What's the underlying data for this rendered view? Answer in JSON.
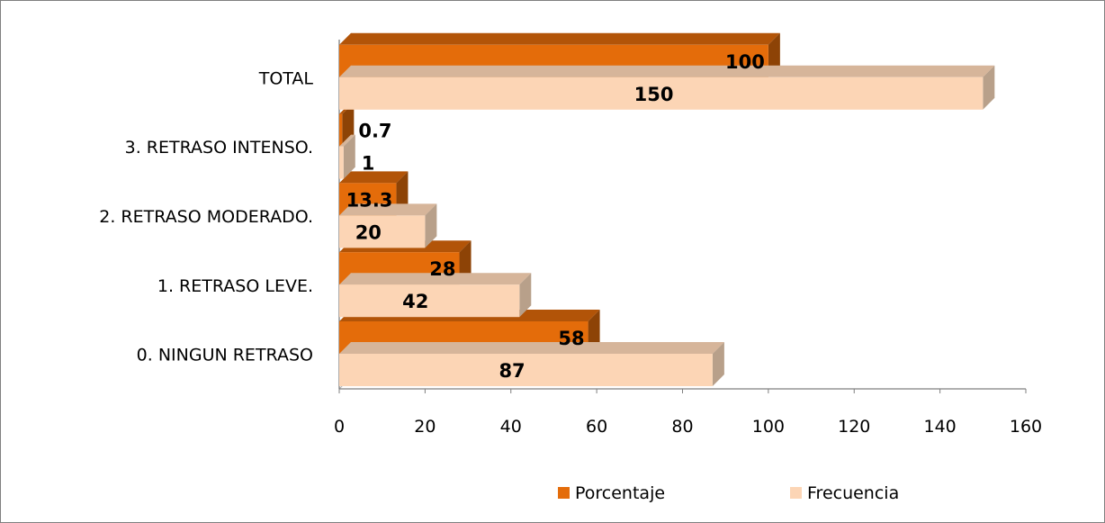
{
  "chart_data": {
    "type": "bar",
    "orientation": "horizontal",
    "style": "3d",
    "categories": [
      "0. NINGUN RETRASO",
      "1. RETRASO LEVE.",
      "2. RETRASO MODERADO.",
      "3. RETRASO INTENSO.",
      "TOTAL"
    ],
    "series": [
      {
        "name": "Porcentaje",
        "color": "#E46C0A",
        "values": [
          58,
          28,
          13.3,
          0.7,
          100
        ],
        "labels": [
          "58",
          "28",
          "13.3",
          "0.7",
          "100"
        ]
      },
      {
        "name": "Frecuencia",
        "color": "#FCD5B5",
        "values": [
          87,
          42,
          20,
          1,
          150
        ],
        "labels": [
          "87",
          "42",
          "20",
          "1",
          "150"
        ]
      }
    ],
    "xlim": [
      0,
      160
    ],
    "xticks": [
      "0",
      "20",
      "40",
      "60",
      "80",
      "100",
      "120",
      "140",
      "160"
    ],
    "grid": false,
    "legend_position": "bottom",
    "title": "",
    "xlabel": "",
    "ylabel": ""
  }
}
